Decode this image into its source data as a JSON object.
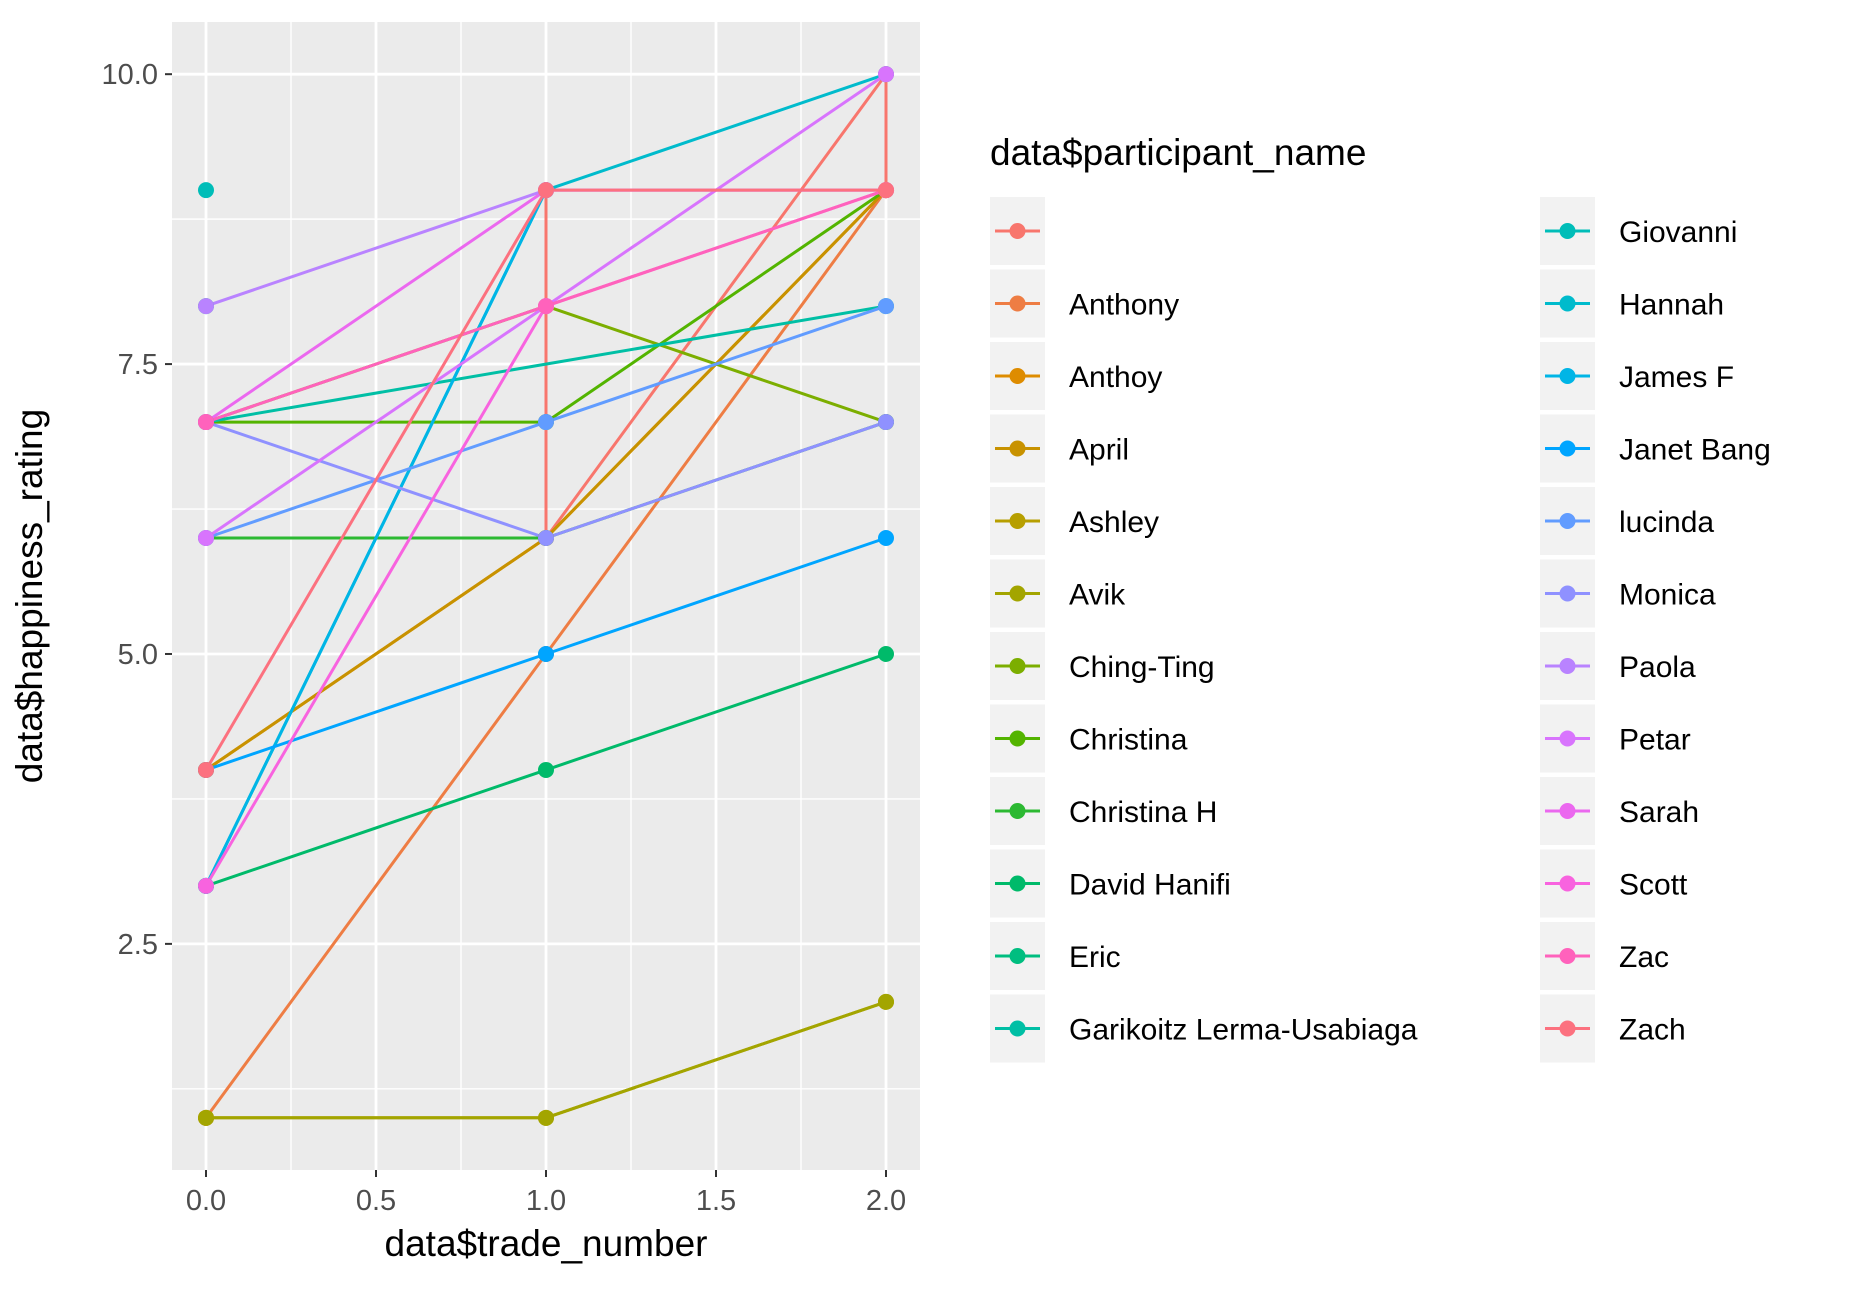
{
  "chart_data": {
    "type": "line",
    "xlabel": "data$trade_number",
    "ylabel": "data$happiness_rating",
    "xlim": [
      -0.1,
      2.1
    ],
    "ylim": [
      0.55,
      10.45
    ],
    "x_ticks": [
      0.0,
      0.5,
      1.0,
      1.5,
      2.0
    ],
    "x_tick_labels": [
      "0.0",
      "0.5",
      "1.0",
      "1.5",
      "2.0"
    ],
    "y_ticks": [
      2.5,
      5.0,
      7.5,
      10.0
    ],
    "y_tick_labels": [
      "2.5",
      "5.0",
      "7.5",
      "10.0"
    ],
    "grid": true,
    "legend": {
      "title": "data$participant_name",
      "placement": "right",
      "columns": 2
    },
    "series": [
      {
        "name": "",
        "color": "#F8766D",
        "points": [
          [
            1,
            9
          ],
          [
            1,
            6
          ],
          [
            2,
            10
          ],
          [
            2,
            9
          ]
        ]
      },
      {
        "name": "Anthony",
        "color": "#EE7D44",
        "points": [
          [
            0,
            1
          ],
          [
            1,
            5
          ],
          [
            2,
            9
          ]
        ]
      },
      {
        "name": "Anthoy",
        "color": "#DE8C00",
        "points": [
          [
            0,
            4
          ],
          [
            1,
            6
          ],
          [
            2,
            9
          ]
        ]
      },
      {
        "name": "April",
        "color": "#C89200",
        "points": [
          [
            0,
            4
          ],
          [
            1,
            6
          ],
          [
            2,
            9
          ]
        ]
      },
      {
        "name": "Ashley",
        "color": "#B79F00",
        "points": [
          [
            0,
            1
          ],
          [
            1,
            1
          ],
          [
            2,
            2
          ]
        ]
      },
      {
        "name": "Avik",
        "color": "#A3A500",
        "points": [
          [
            0,
            1
          ],
          [
            1,
            1
          ],
          [
            2,
            2
          ]
        ]
      },
      {
        "name": "Ching-Ting",
        "color": "#7CAE00",
        "points": [
          [
            0,
            7
          ],
          [
            1,
            8
          ],
          [
            2,
            7
          ]
        ]
      },
      {
        "name": "Christina",
        "color": "#53B400",
        "points": [
          [
            0,
            7
          ],
          [
            1,
            7
          ],
          [
            2,
            9
          ]
        ]
      },
      {
        "name": "Christina H",
        "color": "#2CB932",
        "points": [
          [
            0,
            6
          ],
          [
            1,
            6
          ],
          [
            2,
            7
          ]
        ]
      },
      {
        "name": "David Hanifi",
        "color": "#00BA6A",
        "points": [
          [
            0,
            3
          ],
          [
            1,
            4
          ],
          [
            2,
            5
          ]
        ]
      },
      {
        "name": "Eric",
        "color": "#00BE80",
        "points": [
          [
            0,
            8
          ]
        ]
      },
      {
        "name": "Garikoitz Lerma-Usabiaga",
        "color": "#00BFA5",
        "points": [
          [
            0,
            7
          ],
          [
            2,
            8
          ]
        ]
      },
      {
        "name": "Giovanni",
        "color": "#00BDB8",
        "points": [
          [
            0,
            9
          ]
        ]
      },
      {
        "name": "Hannah",
        "color": "#00BBCC",
        "points": [
          [
            0,
            3
          ],
          [
            1,
            9
          ],
          [
            2,
            10
          ]
        ]
      },
      {
        "name": "James F",
        "color": "#00B5E6",
        "points": [
          [
            0,
            3
          ],
          [
            1,
            9
          ]
        ]
      },
      {
        "name": "Janet Bang",
        "color": "#00A5FF",
        "points": [
          [
            0,
            4
          ],
          [
            1,
            5
          ],
          [
            2,
            6
          ]
        ]
      },
      {
        "name": "lucinda",
        "color": "#619CFF",
        "points": [
          [
            0,
            6
          ],
          [
            1,
            7
          ],
          [
            2,
            8
          ]
        ]
      },
      {
        "name": "Monica",
        "color": "#8F91FF",
        "points": [
          [
            0,
            7
          ],
          [
            1,
            6
          ],
          [
            2,
            7
          ]
        ]
      },
      {
        "name": "Paola",
        "color": "#B983FF",
        "points": [
          [
            0,
            8
          ],
          [
            1,
            9
          ],
          [
            2,
            9
          ]
        ]
      },
      {
        "name": "Petar",
        "color": "#D874FD",
        "points": [
          [
            0,
            6
          ],
          [
            1,
            8
          ],
          [
            2,
            10
          ]
        ]
      },
      {
        "name": "Sarah",
        "color": "#EB68EF",
        "points": [
          [
            0,
            7
          ],
          [
            1,
            9
          ],
          [
            2,
            9
          ]
        ]
      },
      {
        "name": "Scott",
        "color": "#F863DF",
        "points": [
          [
            0,
            3
          ],
          [
            1,
            8
          ],
          [
            2,
            9
          ]
        ]
      },
      {
        "name": "Zac",
        "color": "#FF62BC",
        "points": [
          [
            0,
            7
          ],
          [
            1,
            8
          ],
          [
            2,
            9
          ]
        ]
      },
      {
        "name": "Zach",
        "color": "#FC717F",
        "points": [
          [
            0,
            4
          ],
          [
            1,
            9
          ],
          [
            2,
            9
          ]
        ]
      }
    ]
  }
}
